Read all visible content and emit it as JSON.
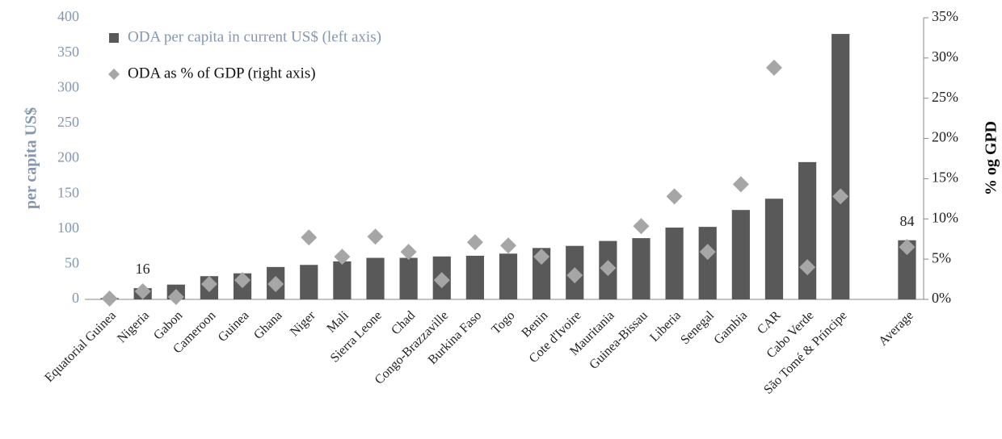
{
  "chart_data": {
    "type": "bar_scatter",
    "categories": [
      "Equatorial Guinea",
      "Nigeria",
      "Gabon",
      "Cameroon",
      "Guinea",
      "Ghana",
      "Niger",
      "Mali",
      "Sierra Leone",
      "Chad",
      "Congo-Brazzaville",
      "Burkina Faso",
      "Togo",
      "Benin",
      "Cote d'Ivoire",
      "Mauritania",
      "Guinea-Bissau",
      "Liberia",
      "Senegal",
      "Gambia",
      "CAR",
      "Cabo Verde",
      "São Tomé & Príncipe",
      null,
      "Average"
    ],
    "series": [
      {
        "name": "ODA per capita in current US$ (left axis)",
        "color": "#595959",
        "type": "bar",
        "axis": "y",
        "values": [
          2,
          16,
          21,
          33,
          37,
          46,
          49,
          54,
          59,
          59,
          61,
          62,
          65,
          73,
          76,
          83,
          87,
          102,
          103,
          127,
          143,
          195,
          377,
          null,
          84
        ]
      },
      {
        "name": "ODA as % of GDP (right axis)",
        "color": "#a6a6a6",
        "type": "scatter",
        "axis": "y2",
        "values": [
          0.1,
          1.0,
          0.3,
          1.9,
          2.4,
          1.9,
          7.7,
          5.3,
          7.8,
          5.9,
          2.4,
          7.1,
          6.7,
          5.3,
          3.0,
          3.9,
          9.1,
          12.8,
          5.9,
          14.3,
          28.8,
          4.0,
          12.8,
          null,
          6.5
        ]
      }
    ],
    "data_labels": [
      1,
      24
    ],
    "ylabel": "per capita US$",
    "y2label": "% og GPD",
    "ylim": [
      0,
      400
    ],
    "yticks": [
      0,
      50,
      100,
      150,
      200,
      250,
      300,
      350,
      400
    ],
    "y2lim": [
      0,
      35
    ],
    "y2ticks": [
      {
        "value": 0,
        "label": "0%"
      },
      {
        "value": 5,
        "label": "5%"
      },
      {
        "value": 10,
        "label": "10%"
      },
      {
        "value": 15,
        "label": "15%"
      },
      {
        "value": 20,
        "label": "20%"
      },
      {
        "value": 25,
        "label": "25%"
      },
      {
        "value": 30,
        "label": "30%"
      },
      {
        "value": 35,
        "label": "35%"
      }
    ],
    "legend": "upper left",
    "grid": false
  }
}
